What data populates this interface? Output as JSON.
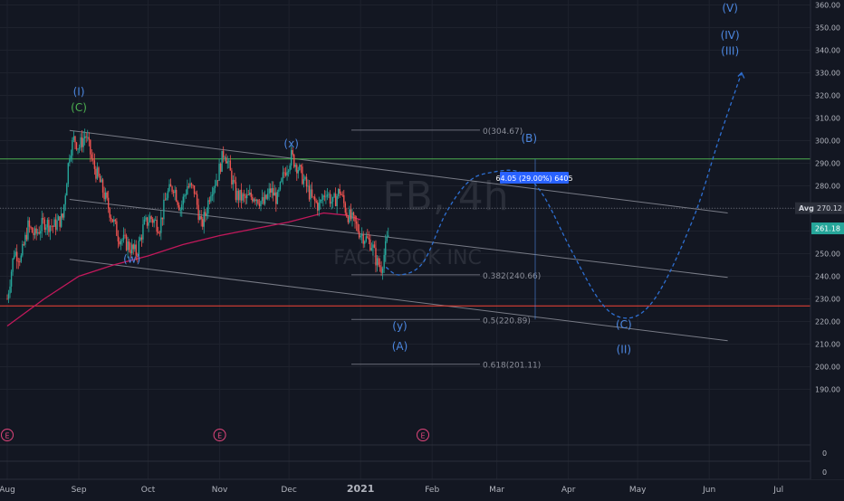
{
  "chart_data": {
    "type": "candlestick",
    "watermark": {
      "symbol": "FB, 4h",
      "name": "FACEBOOK INC"
    },
    "x_axis": {
      "ticks": [
        {
          "label": "Aug",
          "day": 0
        },
        {
          "label": "Sep",
          "day": 31
        },
        {
          "label": "Oct",
          "day": 61
        },
        {
          "label": "Nov",
          "day": 92
        },
        {
          "label": "Dec",
          "day": 122
        },
        {
          "label": "2021",
          "day": 153
        },
        {
          "label": "Feb",
          "day": 184
        },
        {
          "label": "Mar",
          "day": 212
        },
        {
          "label": "Apr",
          "day": 243
        },
        {
          "label": "May",
          "day": 273
        },
        {
          "label": "Jun",
          "day": 304
        },
        {
          "label": "Jul",
          "day": 334
        }
      ]
    },
    "y_axis": {
      "ticks": [
        "360.00",
        "350.00",
        "340.00",
        "330.00",
        "320.00",
        "310.00",
        "300.00",
        "290.00",
        "280.00",
        "270.00",
        "260.00",
        "250.00",
        "240.00",
        "230.00",
        "220.00",
        "210.00",
        "200.00",
        "190.00"
      ],
      "tick_values": [
        360,
        350,
        340,
        330,
        320,
        310,
        300,
        290,
        280,
        270,
        260,
        250,
        240,
        230,
        220,
        210,
        200,
        190
      ],
      "lower_panel_ticks": [
        "0",
        "0"
      ],
      "range": [
        182,
        365
      ]
    },
    "price_labels": {
      "avg": {
        "label": "Avg",
        "value": "270.12",
        "y": 270.12
      },
      "last": {
        "value": "261.18",
        "y": 261.18
      }
    },
    "price_path": [
      [
        0,
        230
      ],
      [
        3,
        251
      ],
      [
        6,
        248
      ],
      [
        9,
        262
      ],
      [
        12,
        258
      ],
      [
        16,
        264
      ],
      [
        20,
        262
      ],
      [
        24,
        266
      ],
      [
        27,
        295
      ],
      [
        29,
        301
      ],
      [
        31,
        297
      ],
      [
        34,
        303
      ],
      [
        37,
        290
      ],
      [
        40,
        282
      ],
      [
        44,
        270
      ],
      [
        48,
        258
      ],
      [
        52,
        254
      ],
      [
        56,
        250
      ],
      [
        59,
        262
      ],
      [
        62,
        266
      ],
      [
        66,
        262
      ],
      [
        69,
        276
      ],
      [
        72,
        280
      ],
      [
        75,
        270
      ],
      [
        78,
        280
      ],
      [
        81,
        278
      ],
      [
        84,
        262
      ],
      [
        86,
        268
      ],
      [
        88,
        278
      ],
      [
        91,
        284
      ],
      [
        94,
        296
      ],
      [
        96,
        288
      ],
      [
        99,
        276
      ],
      [
        103,
        274
      ],
      [
        107,
        276
      ],
      [
        111,
        272
      ],
      [
        114,
        278
      ],
      [
        117,
        274
      ],
      [
        120,
        286
      ],
      [
        123,
        293
      ],
      [
        126,
        288
      ],
      [
        129,
        281
      ],
      [
        132,
        274
      ],
      [
        135,
        271
      ],
      [
        138,
        278
      ],
      [
        141,
        272
      ],
      [
        144,
        278
      ],
      [
        147,
        268
      ],
      [
        150,
        264
      ],
      [
        153,
        259
      ],
      [
        156,
        256
      ],
      [
        158,
        254
      ],
      [
        160,
        246
      ],
      [
        162,
        244
      ],
      [
        165,
        258
      ]
    ],
    "moving_average": [
      [
        0,
        218
      ],
      [
        16,
        230
      ],
      [
        31,
        240
      ],
      [
        46,
        245
      ],
      [
        61,
        249
      ],
      [
        76,
        254
      ],
      [
        92,
        258
      ],
      [
        107,
        261
      ],
      [
        122,
        264
      ],
      [
        137,
        268
      ],
      [
        147,
        267
      ],
      [
        153,
        265
      ]
    ],
    "wave_labels": [
      {
        "text": "(I)",
        "day": 31,
        "y": 320,
        "color": "#4c87e0"
      },
      {
        "text": "(C)",
        "day": 31,
        "y": 313,
        "color": "#4caf50"
      },
      {
        "text": "(w)",
        "day": 54,
        "y": 246,
        "color": "#4c87e0"
      },
      {
        "text": "(x)",
        "day": 123,
        "y": 297,
        "color": "#4c87e0"
      },
      {
        "text": "(y)",
        "day": 170,
        "y": 216.5,
        "color": "#4c87e0"
      },
      {
        "text": "(A)",
        "day": 170,
        "y": 207.5,
        "color": "#4c87e0"
      },
      {
        "text": "(B)",
        "day": 226,
        "y": 299.5,
        "color": "#4c87e0"
      },
      {
        "text": "(C)",
        "day": 267,
        "y": 217,
        "color": "#4c87e0"
      },
      {
        "text": "(II)",
        "day": 267,
        "y": 206,
        "color": "#4c87e0"
      },
      {
        "text": "(V)",
        "day": 313,
        "y": 357,
        "color": "#4c87e0"
      },
      {
        "text": "(IV)",
        "day": 313,
        "y": 345,
        "color": "#4c87e0"
      },
      {
        "text": "(III)",
        "day": 313,
        "y": 338,
        "color": "#4c87e0"
      }
    ],
    "fib_levels": [
      {
        "label": "0(304.67)",
        "y": 304.67
      },
      {
        "label": "0.382(240.66)",
        "y": 240.66
      },
      {
        "label": "0.5(220.89)",
        "y": 220.89
      },
      {
        "label": "0.618(201.11)",
        "y": 201.11
      }
    ],
    "measure_label": "64.05 (29.00%) 6405",
    "horizontal_lines": [
      {
        "y": 291.9,
        "color": "#4caf50"
      },
      {
        "y": 226.9,
        "color": "#f44336"
      }
    ],
    "earnings_markers": [
      {
        "text": "E",
        "day": 0
      },
      {
        "text": "E",
        "day": 92
      },
      {
        "text": "E",
        "day": 180
      }
    ],
    "projection_path": [
      [
        164,
        244
      ],
      [
        170,
        240.6
      ],
      [
        180,
        246
      ],
      [
        190,
        268
      ],
      [
        200,
        282
      ],
      [
        210,
        286
      ],
      [
        222,
        286
      ],
      [
        232,
        276
      ],
      [
        244,
        252
      ],
      [
        256,
        230
      ],
      [
        265,
        222
      ],
      [
        275,
        224
      ],
      [
        285,
        238
      ],
      [
        298,
        268
      ],
      [
        308,
        300
      ],
      [
        318,
        330
      ]
    ],
    "colors": {
      "background": "#131722",
      "grid": "#1e222d",
      "up": "#26a69a",
      "down": "#ef5350",
      "channel": "#787b86",
      "projection": "#2e6fd1",
      "ma": "#c2185b",
      "fib": "#6a6d78",
      "avg_badge": "#2a2e39",
      "last_badge": "#26a69a",
      "measure_box": "#2962ff"
    }
  }
}
